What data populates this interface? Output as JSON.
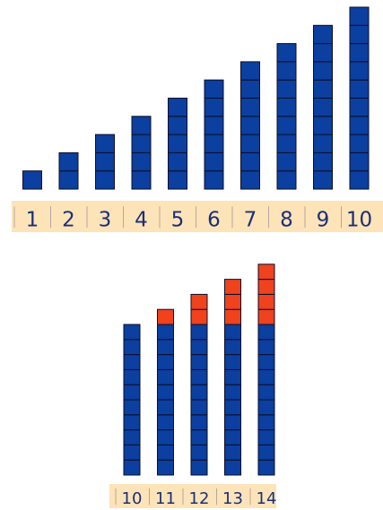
{
  "top_section": {
    "stacks": [
      {
        "label": "1",
        "blue_units": 1,
        "red_units": 0
      },
      {
        "label": "2",
        "blue_units": 2,
        "red_units": 0
      },
      {
        "label": "3",
        "blue_units": 3,
        "red_units": 0
      },
      {
        "label": "4",
        "blue_units": 4,
        "red_units": 0
      },
      {
        "label": "5",
        "blue_units": 5,
        "red_units": 0
      },
      {
        "label": "6",
        "blue_units": 6,
        "red_units": 0
      },
      {
        "label": "7",
        "blue_units": 7,
        "red_units": 0
      },
      {
        "label": "8",
        "blue_units": 8,
        "red_units": 0
      },
      {
        "label": "9",
        "blue_units": 9,
        "red_units": 0
      },
      {
        "label": "10",
        "blue_units": 10,
        "red_units": 0
      }
    ]
  },
  "bottom_section": {
    "stacks": [
      {
        "label": "10",
        "blue_units": 10,
        "red_units": 0
      },
      {
        "label": "11",
        "blue_units": 10,
        "red_units": 1
      },
      {
        "label": "12",
        "blue_units": 10,
        "red_units": 2
      },
      {
        "label": "13",
        "blue_units": 10,
        "red_units": 3
      },
      {
        "label": "14",
        "blue_units": 10,
        "red_units": 4
      }
    ]
  },
  "colors": {
    "blue_block": "#0b3fa0",
    "red_block": "#f0421c",
    "block_outline": "#0a0f2a",
    "number_strip": "#fde3b8",
    "strip_text": "#1a2f78"
  }
}
